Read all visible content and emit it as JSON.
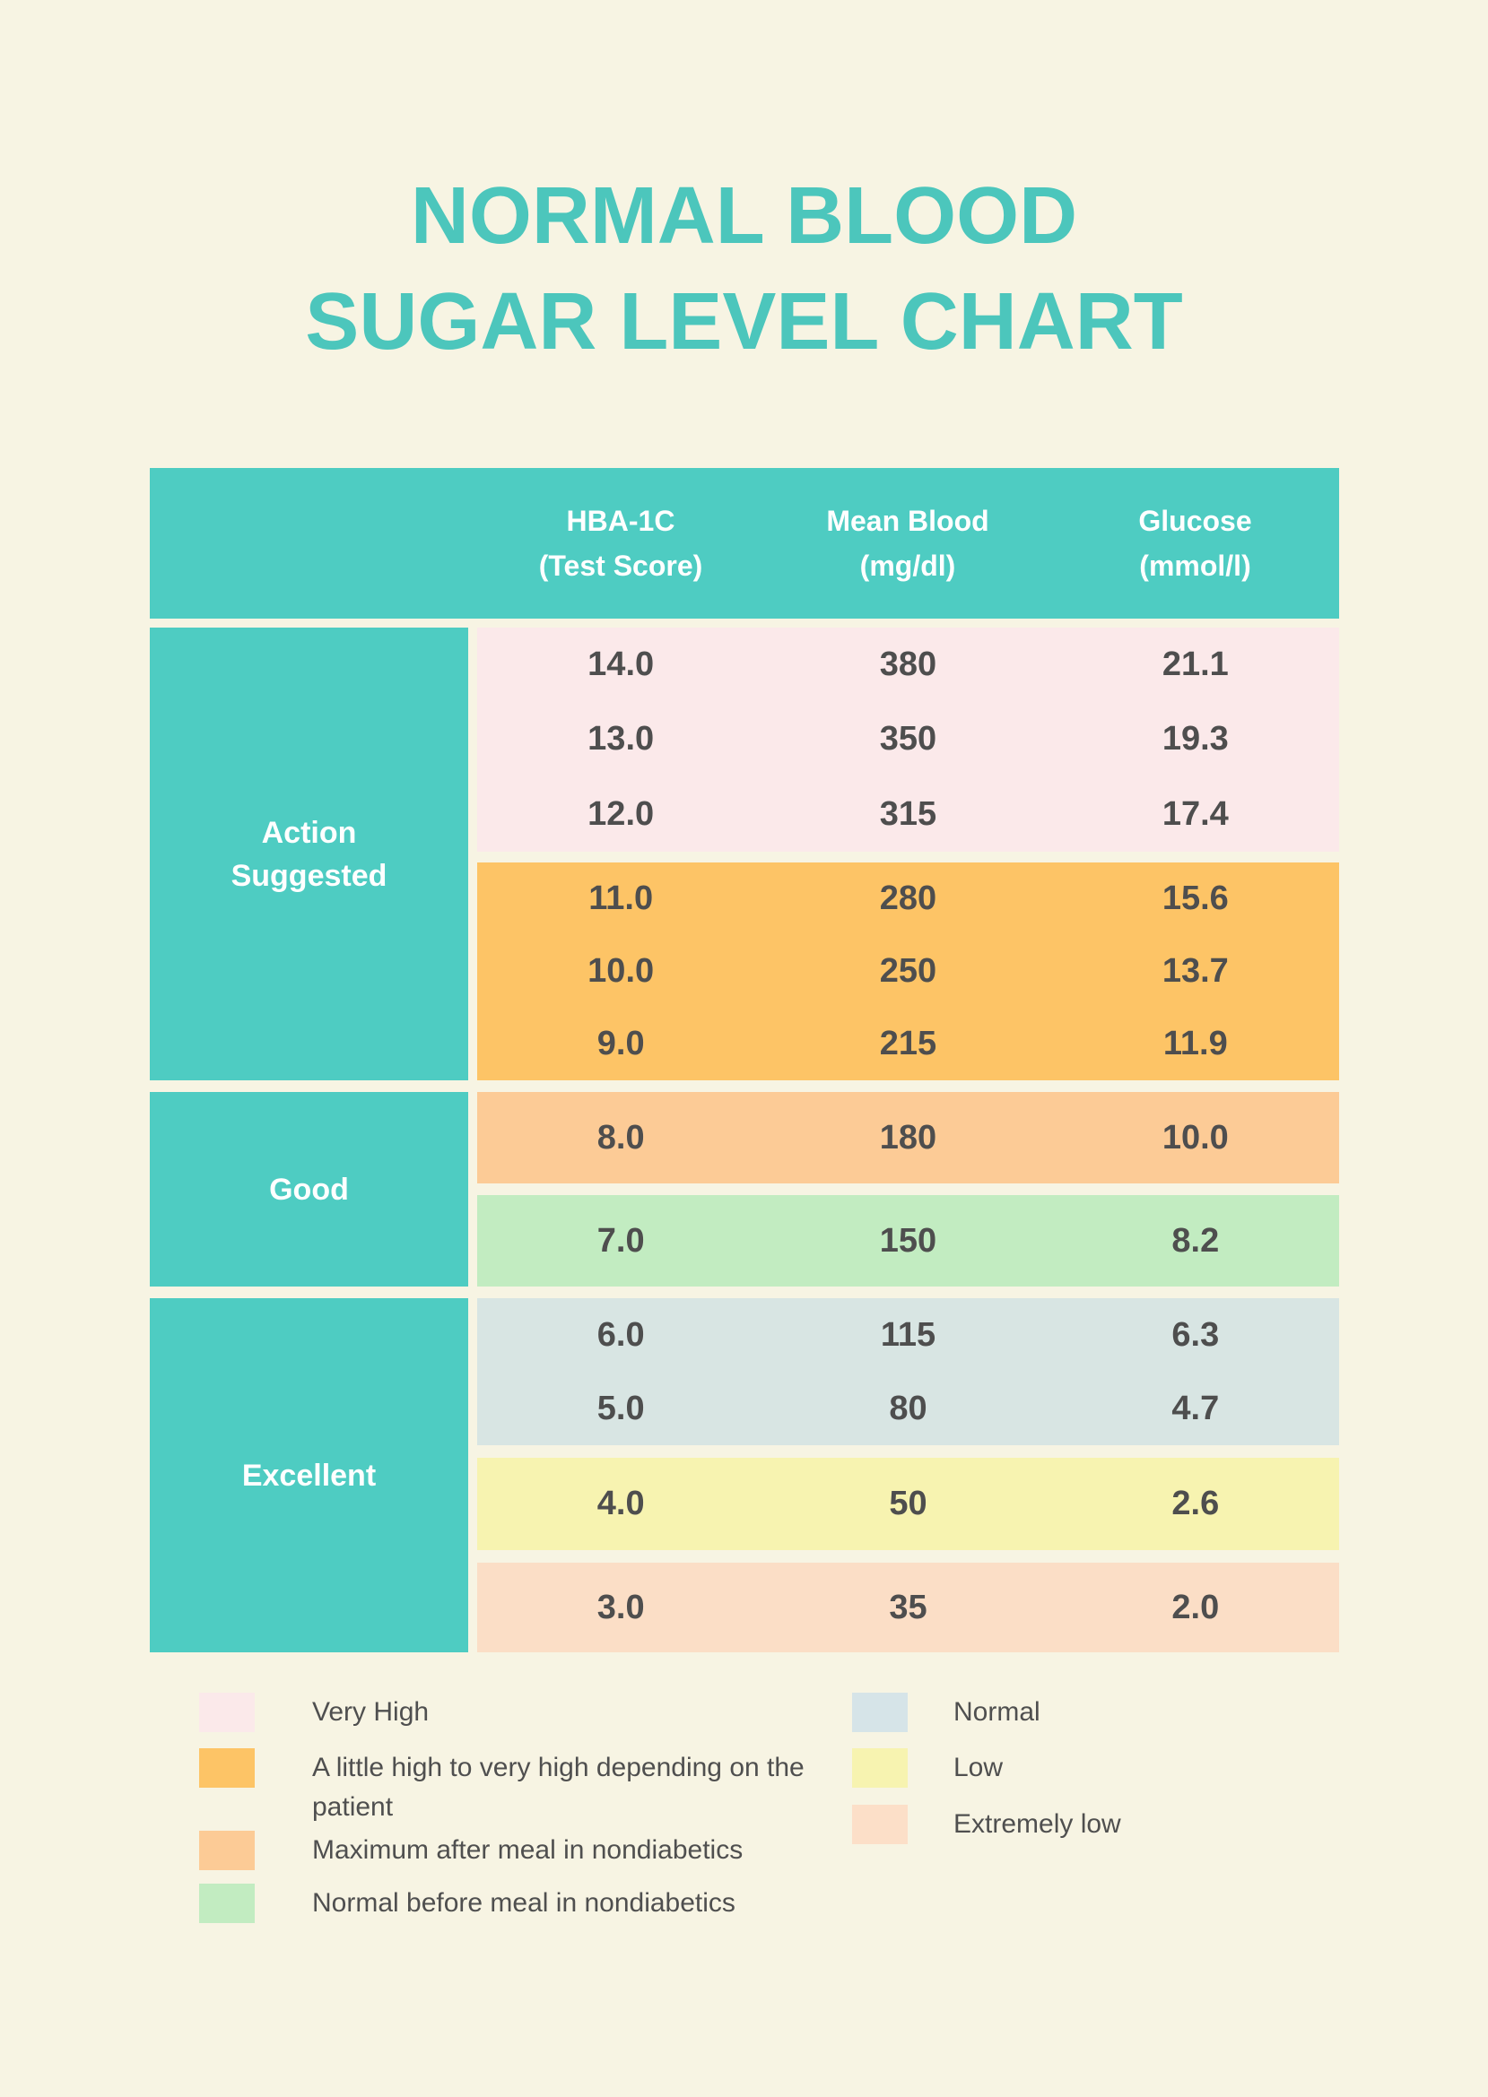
{
  "page": {
    "background": "#f7f4e3",
    "accent_teal": "#4eccc2",
    "title_color": "#4cc6bc",
    "value_text_color": "#4e4e4e"
  },
  "title": {
    "line1": "NORMAL BLOOD",
    "line2": "SUGAR LEVEL CHART"
  },
  "table": {
    "header": {
      "columns": [
        {
          "line1": "HBA-1C",
          "line2": "(Test Score)"
        },
        {
          "line1": "Mean Blood",
          "line2": "(mg/dl)"
        },
        {
          "line1": "Glucose",
          "line2": "(mmol/l)"
        }
      ]
    },
    "categories": [
      {
        "label": "Action Suggested"
      },
      {
        "label": "Good"
      },
      {
        "label": "Excellent"
      }
    ],
    "blocks": [
      {
        "name": "very-high",
        "hex": "#fbe9ea",
        "rows": [
          [
            "14.0",
            "380",
            "21.1"
          ],
          [
            "13.0",
            "350",
            "19.3"
          ],
          [
            "12.0",
            "315",
            "17.4"
          ]
        ]
      },
      {
        "name": "little-high",
        "hex": "#fdc466",
        "rows": [
          [
            "11.0",
            "280",
            "15.6"
          ],
          [
            "10.0",
            "250",
            "13.7"
          ],
          [
            "9.0",
            "215",
            "11.9"
          ]
        ]
      },
      {
        "name": "max-after-meal",
        "hex": "#fccb96",
        "rows": [
          [
            "8.0",
            "180",
            "10.0"
          ]
        ]
      },
      {
        "name": "normal-before-meal",
        "hex": "#c2ecc1",
        "rows": [
          [
            "7.0",
            "150",
            "8.2"
          ]
        ]
      },
      {
        "name": "normal",
        "hex": "#d8e5e3",
        "rows": [
          [
            "6.0",
            "115",
            "6.3"
          ],
          [
            "5.0",
            "80",
            "4.7"
          ]
        ]
      },
      {
        "name": "low",
        "hex": "#f7f3b0",
        "rows": [
          [
            "4.0",
            "50",
            "2.6"
          ]
        ]
      },
      {
        "name": "extremely-low",
        "hex": "#fbdec6",
        "rows": [
          [
            "3.0",
            "35",
            "2.0"
          ]
        ]
      }
    ]
  },
  "legend": {
    "items": [
      {
        "label": "Very High",
        "hex": "#fbe9ea"
      },
      {
        "label": "A little high to very high depending on the patient",
        "hex": "#fdc466"
      },
      {
        "label": "Maximum after meal in nondiabetics",
        "hex": "#fccb96"
      },
      {
        "label": "Normal before meal in nondiabetics",
        "hex": "#c2ecc1"
      },
      {
        "label": "Normal",
        "hex": "#d6e4e8"
      },
      {
        "label": "Low",
        "hex": "#f7f3b0"
      },
      {
        "label": "Extremely low",
        "hex": "#fcdfc8"
      }
    ]
  },
  "chart_data": {
    "type": "table",
    "title": "NORMAL BLOOD SUGAR LEVEL CHART",
    "columns": [
      "HBA-1C (Test Score)",
      "Mean Blood (mg/dl)",
      "Glucose (mmol/l)"
    ],
    "sections": [
      {
        "category": "Action Suggested",
        "rows": [
          [
            14.0,
            380,
            21.1
          ],
          [
            13.0,
            350,
            19.3
          ],
          [
            12.0,
            315,
            17.4
          ],
          [
            11.0,
            280,
            15.6
          ],
          [
            10.0,
            250,
            13.7
          ],
          [
            9.0,
            215,
            11.9
          ]
        ]
      },
      {
        "category": "Good",
        "rows": [
          [
            8.0,
            180,
            10.0
          ],
          [
            7.0,
            150,
            8.2
          ]
        ]
      },
      {
        "category": "Excellent",
        "rows": [
          [
            6.0,
            115,
            6.3
          ],
          [
            5.0,
            80,
            4.7
          ],
          [
            4.0,
            50,
            2.6
          ],
          [
            3.0,
            35,
            2.0
          ]
        ]
      }
    ],
    "legend": [
      "Very High",
      "A little high to very high depending on the patient",
      "Maximum after meal in nondiabetics",
      "Normal before meal in nondiabetics",
      "Normal",
      "Low",
      "Extremely low"
    ]
  }
}
